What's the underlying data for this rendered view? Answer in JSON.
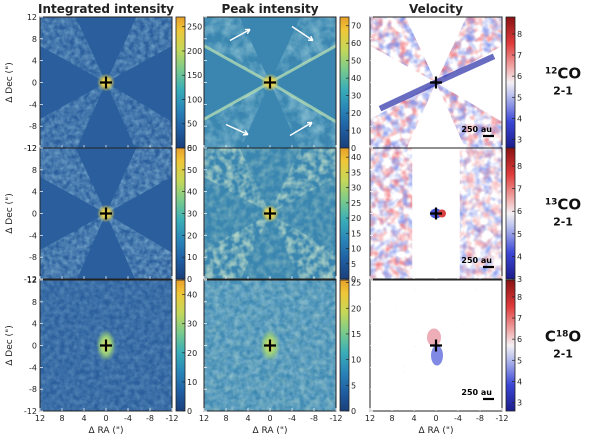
{
  "chart_data": {
    "type": "heatmap",
    "column_titles": [
      "Integrated intensity",
      "Peak intensity",
      "Velocity"
    ],
    "x_axis": {
      "label": "Δ RA (\")",
      "ticks": [
        12,
        8,
        4,
        0,
        -4,
        -8,
        -12
      ]
    },
    "y_axis": {
      "label": "Δ Dec (\")",
      "ticks": [
        12,
        8,
        4,
        0,
        -4,
        -8,
        -12
      ]
    },
    "rows": [
      {
        "molecule_prefix": "12",
        "molecule": "CO",
        "transition": "2-1",
        "panels": [
          {
            "colorbar": {
              "ticks": [
                0,
                50,
                100,
                150,
                200,
                250
              ],
              "range": [
                0,
                270
              ]
            }
          },
          {
            "colorbar": {
              "ticks": [
                0,
                10,
                20,
                30,
                40,
                50,
                60,
                70
              ],
              "range": [
                0,
                75
              ]
            }
          },
          {
            "colorbar": {
              "ticks": [
                3,
                4,
                5,
                6,
                7,
                8
              ],
              "range": [
                2.6,
                8.8
              ]
            },
            "scale_bar": "250 au"
          }
        ]
      },
      {
        "molecule_prefix": "13",
        "molecule": "CO",
        "transition": "2-1",
        "panels": [
          {
            "colorbar": {
              "ticks": [
                0,
                10,
                20,
                30,
                40,
                50,
                60
              ],
              "range": [
                0,
                60
              ]
            }
          },
          {
            "colorbar": {
              "ticks": [
                0,
                5,
                10,
                15,
                20,
                25,
                30,
                35,
                40
              ],
              "range": [
                0,
                43
              ]
            }
          },
          {
            "colorbar": {
              "ticks": [
                3,
                4,
                5,
                6,
                7,
                8
              ],
              "range": [
                3,
                8.8
              ]
            },
            "scale_bar": "250 au"
          }
        ]
      },
      {
        "molecule_prefix": "18",
        "molecule": "O",
        "molecule_base": "C",
        "transition": "2-1",
        "panels": [
          {
            "colorbar": {
              "ticks": [
                0,
                10,
                20,
                30,
                40
              ],
              "range": [
                0,
                45
              ]
            }
          },
          {
            "colorbar": {
              "ticks": [
                0,
                5,
                10,
                15,
                20,
                25
              ],
              "range": [
                0,
                25.5
              ]
            }
          },
          {
            "colorbar": {
              "ticks": [
                3,
                4,
                5,
                6,
                7,
                8
              ],
              "range": [
                2.6,
                8.8
              ]
            },
            "scale_bar": "250 au"
          }
        ]
      }
    ]
  }
}
